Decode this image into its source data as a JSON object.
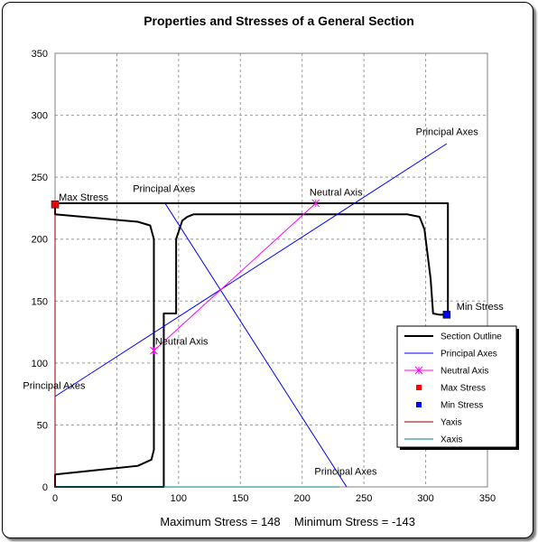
{
  "chart_data": {
    "type": "scatter",
    "title": "Properties and Stresses  of a General Section",
    "xlabel": "",
    "ylabel": "",
    "xlim": [
      0,
      350
    ],
    "ylim": [
      0,
      350
    ],
    "xticks": [
      0,
      50,
      100,
      150,
      200,
      250,
      300,
      350
    ],
    "yticks": [
      0,
      50,
      100,
      150,
      200,
      250,
      300,
      350
    ],
    "grid": true,
    "legend_position": "lower-right",
    "series": [
      {
        "name": "Section Outline",
        "color": "#000000",
        "style": "line",
        "x": [
          0,
          318,
          318,
          311,
          306,
          304,
          299,
          295,
          285,
          120,
          112,
          107,
          103,
          98,
          98,
          88,
          88,
          0,
          0,
          67,
          78,
          80,
          80,
          77,
          67,
          0,
          0,
          318
        ],
        "y": [
          229,
          229,
          139,
          139,
          140,
          168,
          208,
          218,
          220,
          220,
          220,
          218,
          215,
          200,
          140,
          140,
          0,
          0,
          10,
          17,
          22,
          30,
          200,
          211,
          214,
          220,
          229,
          229
        ]
      },
      {
        "name": "Principal Axes",
        "color": "#0000ff",
        "style": "line",
        "segments": [
          {
            "x": [
              0,
              317
            ],
            "y": [
              73,
              277
            ]
          },
          {
            "x": [
              89,
              236
            ],
            "y": [
              229,
              0
            ]
          }
        ]
      },
      {
        "name": "Neutral Axis",
        "color": "#ff00ff",
        "style": "line-marker",
        "marker": "x",
        "x": [
          80,
          211
        ],
        "y": [
          110,
          229
        ]
      },
      {
        "name": "Max Stress",
        "color": "#ff0000",
        "style": "marker",
        "marker": "square",
        "x": [
          0
        ],
        "y": [
          228
        ]
      },
      {
        "name": "Min Stress",
        "color": "#0000ff",
        "style": "marker",
        "marker": "square",
        "x": [
          317
        ],
        "y": [
          139
        ]
      },
      {
        "name": "Yaxis",
        "color": "#800000",
        "style": "line",
        "x": [
          0,
          0
        ],
        "y": [
          0,
          229
        ]
      },
      {
        "name": "Xaxis",
        "color": "#008080",
        "style": "line",
        "x": [
          0,
          230
        ],
        "y": [
          0,
          0
        ]
      }
    ],
    "annotations": [
      {
        "text": "Max Stress",
        "x": 3,
        "y": 231
      },
      {
        "text": "Min Stress",
        "x": 325,
        "y": 143
      },
      {
        "text": "Principal Axes",
        "x": 292,
        "y": 284
      },
      {
        "text": "Principal Axes",
        "x": 63,
        "y": 238
      },
      {
        "text": "Principal Axes",
        "x": -26,
        "y": 79
      },
      {
        "text": "Principal Axes",
        "x": 210,
        "y": 10
      },
      {
        "text": "Neutral Axis",
        "x": 206,
        "y": 235
      },
      {
        "text": "Neutral Axis",
        "x": 81,
        "y": 115
      }
    ]
  },
  "footer": {
    "max_label": "Maximum Stress = 148",
    "min_label": "Minimum Stress = -143"
  }
}
